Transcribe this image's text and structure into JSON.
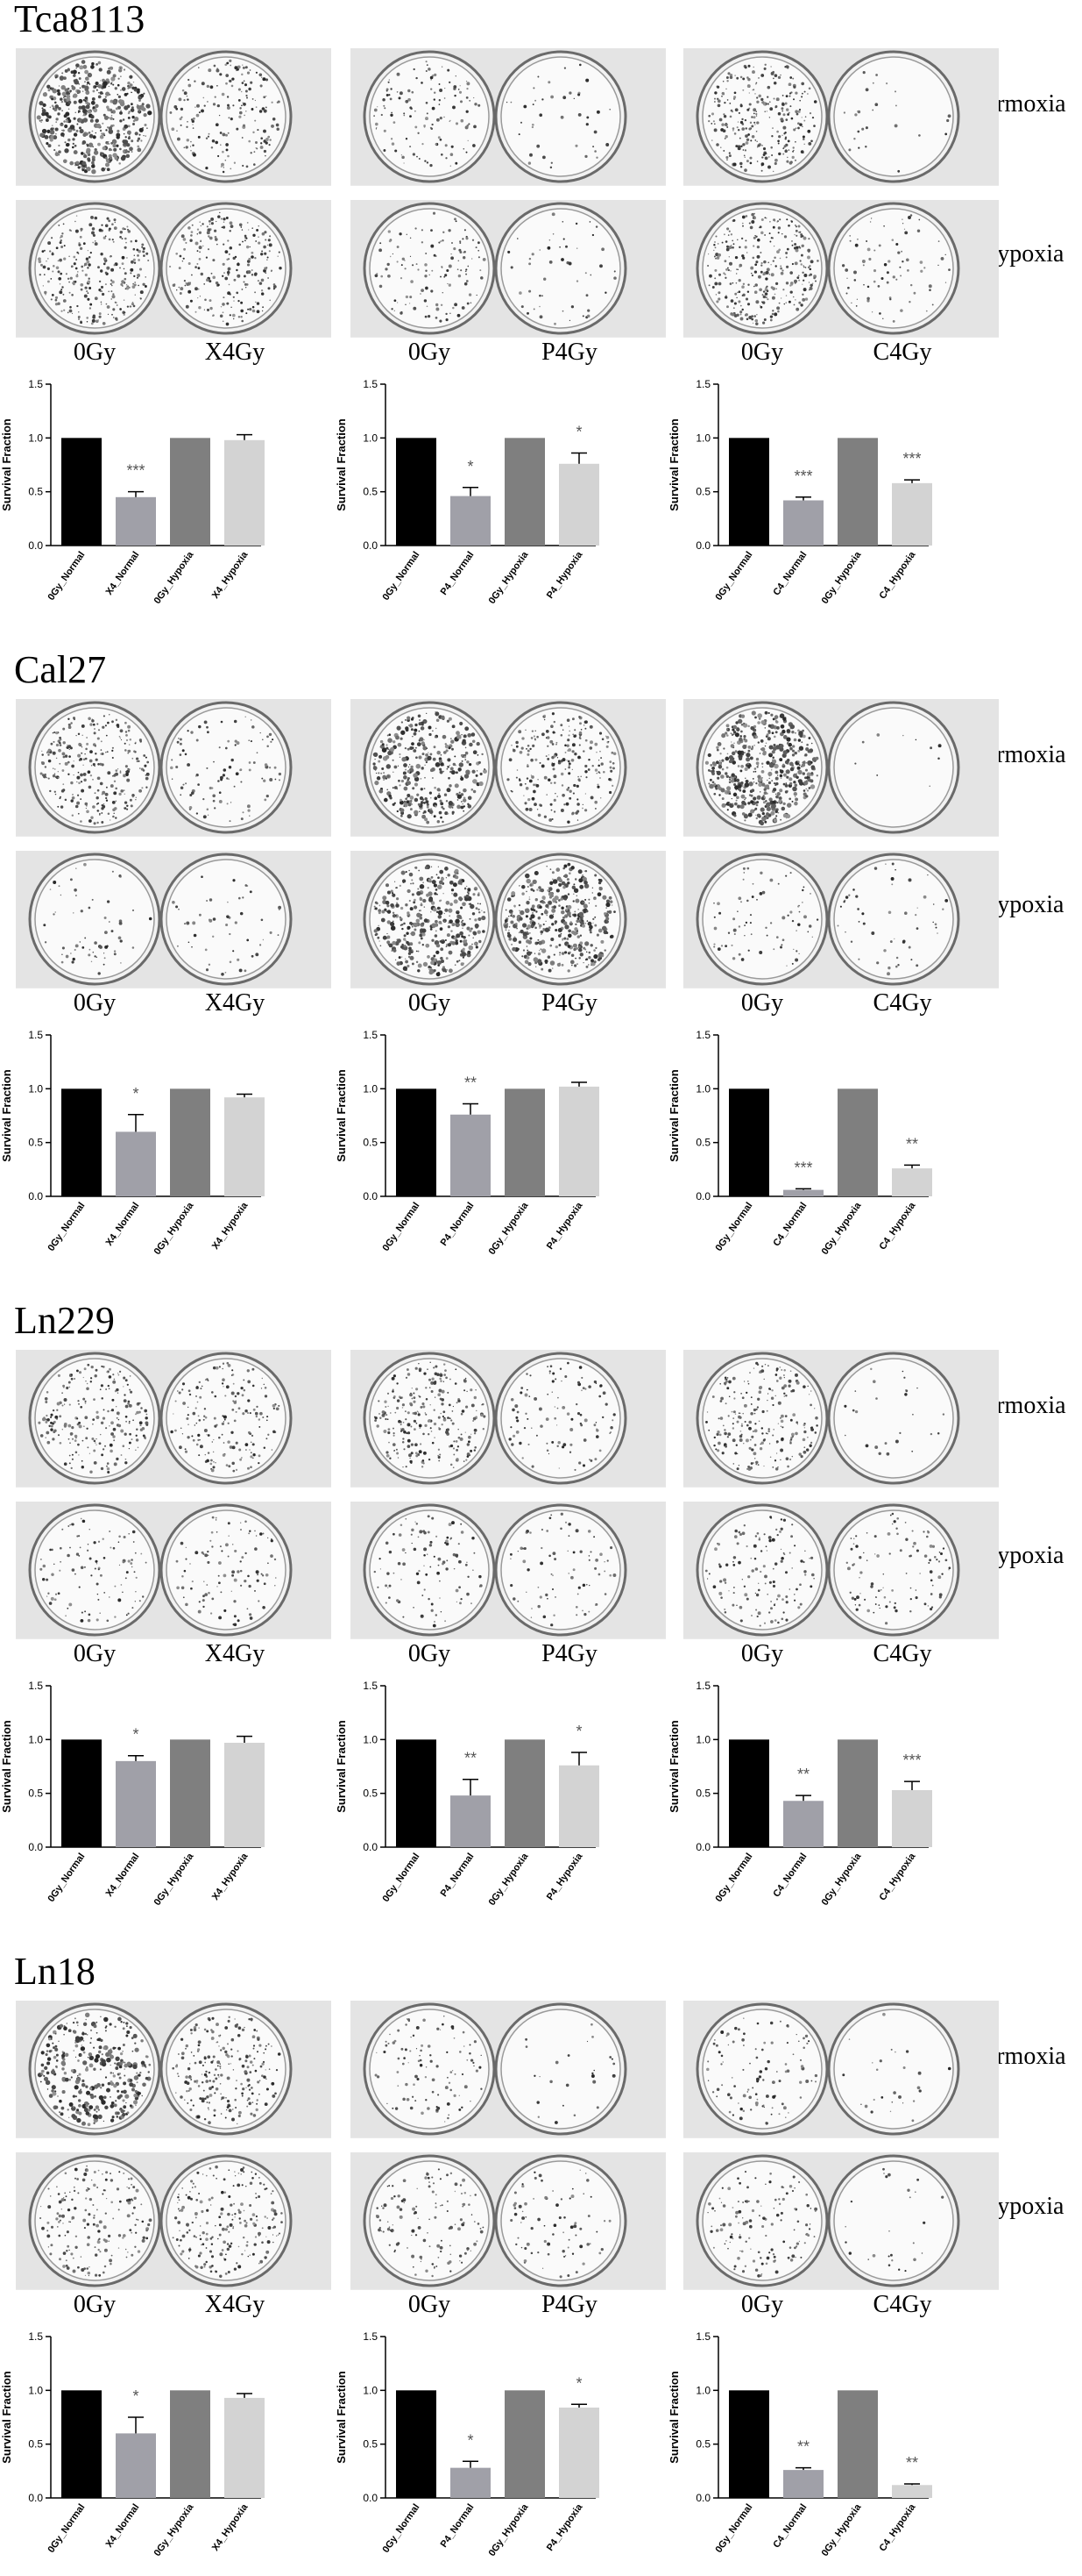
{
  "figure": {
    "row_labels": [
      "Normoxia",
      "Hypoxia"
    ],
    "axis": {
      "ylabel": "Survival Fraction",
      "ticks": [
        "0.0",
        "0.5",
        "1.0",
        "1.5"
      ]
    },
    "colors": {
      "black": "#000000",
      "dark_gray": "#a0a0a8",
      "mid_gray": "#7f7f7f",
      "light_gray": "#d3d3d3",
      "plate_bg": "#e4e4e4",
      "dish": "#fafafa"
    }
  },
  "panels": [
    {
      "title": "Tca8113",
      "groups": [
        {
          "labels": [
            "0Gy",
            "X4Gy"
          ],
          "colony_density": [
            [
              0.95,
              0.35
            ],
            [
              0.55,
              0.45
            ]
          ]
        },
        {
          "labels": [
            "0Gy",
            "P4Gy"
          ],
          "colony_density": [
            [
              0.25,
              0.08
            ],
            [
              0.25,
              0.1
            ]
          ]
        },
        {
          "labels": [
            "0Gy",
            "C4Gy"
          ],
          "colony_density": [
            [
              0.55,
              0.05
            ],
            [
              0.6,
              0.15
            ]
          ]
        }
      ]
    },
    {
      "title": "Cal27",
      "groups": [
        {
          "labels": [
            "0Gy",
            "X4Gy"
          ],
          "colony_density": [
            [
              0.55,
              0.2
            ],
            [
              0.12,
              0.1
            ]
          ]
        },
        {
          "labels": [
            "0Gy",
            "P4Gy"
          ],
          "colony_density": [
            [
              0.7,
              0.45
            ],
            [
              0.8,
              0.8
            ]
          ]
        },
        {
          "labels": [
            "0Gy",
            "C4Gy"
          ],
          "colony_density": [
            [
              1.0,
              0.02
            ],
            [
              0.15,
              0.1
            ]
          ]
        }
      ]
    },
    {
      "title": "Ln229",
      "groups": [
        {
          "labels": [
            "0Gy",
            "X4Gy"
          ],
          "colony_density": [
            [
              0.45,
              0.35
            ],
            [
              0.2,
              0.2
            ]
          ]
        },
        {
          "labels": [
            "0Gy",
            "P4Gy"
          ],
          "colony_density": [
            [
              0.5,
              0.2
            ],
            [
              0.2,
              0.15
            ]
          ]
        },
        {
          "labels": [
            "0Gy",
            "C4Gy"
          ],
          "colony_density": [
            [
              0.45,
              0.05
            ],
            [
              0.25,
              0.2
            ]
          ]
        }
      ]
    },
    {
      "title": "Ln18",
      "groups": [
        {
          "labels": [
            "0Gy",
            "X4Gy"
          ],
          "colony_density": [
            [
              0.65,
              0.45
            ],
            [
              0.35,
              0.4
            ]
          ]
        },
        {
          "labels": [
            "0Gy",
            "P4Gy"
          ],
          "colony_density": [
            [
              0.2,
              0.05
            ],
            [
              0.25,
              0.15
            ]
          ]
        },
        {
          "labels": [
            "0Gy",
            "C4Gy"
          ],
          "colony_density": [
            [
              0.2,
              0.05
            ],
            [
              0.25,
              0.05
            ]
          ]
        }
      ]
    }
  ],
  "chart_data": [
    {
      "panel": "Tca8113",
      "type": "bar",
      "ylabel": "Survival Fraction",
      "ylim": [
        0,
        1.5
      ],
      "categories": [
        "0Gy_Normal",
        "X4_Normal",
        "0Gy_Hypoxia",
        "X4_Hypoxia"
      ],
      "values": [
        1.0,
        0.45,
        1.0,
        0.98
      ],
      "errors": [
        0,
        0.05,
        0,
        0.05
      ],
      "significance": [
        "",
        "***",
        "",
        ""
      ]
    },
    {
      "panel": "Tca8113",
      "type": "bar",
      "ylabel": "Survival Fraction",
      "ylim": [
        0,
        1.5
      ],
      "categories": [
        "0Gy_Normal",
        "P4_Normal",
        "0Gy_Hypoxia",
        "P4_Hypoxia"
      ],
      "values": [
        1.0,
        0.46,
        1.0,
        0.76
      ],
      "errors": [
        0,
        0.08,
        0,
        0.1
      ],
      "significance": [
        "",
        "*",
        "",
        "*"
      ]
    },
    {
      "panel": "Tca8113",
      "type": "bar",
      "ylabel": "Survival Fraction",
      "ylim": [
        0,
        1.5
      ],
      "categories": [
        "0Gy_Normal",
        "C4_Normal",
        "0Gy_Hypoxia",
        "C4_Hypoxia"
      ],
      "values": [
        1.0,
        0.42,
        1.0,
        0.58
      ],
      "errors": [
        0,
        0.03,
        0,
        0.03
      ],
      "significance": [
        "",
        "***",
        "",
        "***"
      ]
    },
    {
      "panel": "Cal27",
      "type": "bar",
      "ylabel": "Survival Fraction",
      "ylim": [
        0,
        1.5
      ],
      "categories": [
        "0Gy_Normal",
        "X4_Normal",
        "0Gy_Hypoxia",
        "X4_Hypoxia"
      ],
      "values": [
        1.0,
        0.6,
        1.0,
        0.92
      ],
      "errors": [
        0,
        0.16,
        0,
        0.03
      ],
      "significance": [
        "",
        "*",
        "",
        ""
      ]
    },
    {
      "panel": "Cal27",
      "type": "bar",
      "ylabel": "Survival Fraction",
      "ylim": [
        0,
        1.5
      ],
      "categories": [
        "0Gy_Normal",
        "P4_Normal",
        "0Gy_Hypoxia",
        "P4_Hypoxia"
      ],
      "values": [
        1.0,
        0.76,
        1.0,
        1.02
      ],
      "errors": [
        0,
        0.1,
        0,
        0.04
      ],
      "significance": [
        "",
        "**",
        "",
        ""
      ]
    },
    {
      "panel": "Cal27",
      "type": "bar",
      "ylabel": "Survival Fraction",
      "ylim": [
        0,
        1.5
      ],
      "categories": [
        "0Gy_Normal",
        "C4_Normal",
        "0Gy_Hypoxia",
        "C4_Hypoxia"
      ],
      "values": [
        1.0,
        0.06,
        1.0,
        0.26
      ],
      "errors": [
        0,
        0.01,
        0,
        0.03
      ],
      "significance": [
        "",
        "***",
        "",
        "**"
      ]
    },
    {
      "panel": "Ln229",
      "type": "bar",
      "ylabel": "Survival Fraction",
      "ylim": [
        0,
        1.5
      ],
      "categories": [
        "0Gy_Normal",
        "X4_Normal",
        "0Gy_Hypoxia",
        "X4_Hypoxia"
      ],
      "values": [
        1.0,
        0.8,
        1.0,
        0.97
      ],
      "errors": [
        0,
        0.05,
        0,
        0.06
      ],
      "significance": [
        "",
        "*",
        "",
        ""
      ]
    },
    {
      "panel": "Ln229",
      "type": "bar",
      "ylabel": "Survival Fraction",
      "ylim": [
        0,
        1.5
      ],
      "categories": [
        "0Gy_Normal",
        "P4_Normal",
        "0Gy_Hypoxia",
        "P4_Hypoxia"
      ],
      "values": [
        1.0,
        0.48,
        1.0,
        0.76
      ],
      "errors": [
        0,
        0.15,
        0,
        0.12
      ],
      "significance": [
        "",
        "**",
        "",
        "*"
      ]
    },
    {
      "panel": "Ln229",
      "type": "bar",
      "ylabel": "Survival Fraction",
      "ylim": [
        0,
        1.5
      ],
      "categories": [
        "0Gy_Normal",
        "C4_Normal",
        "0Gy_Hypoxia",
        "C4_Hypoxia"
      ],
      "values": [
        1.0,
        0.43,
        1.0,
        0.53
      ],
      "errors": [
        0,
        0.05,
        0,
        0.08
      ],
      "significance": [
        "",
        "**",
        "",
        "***"
      ]
    },
    {
      "panel": "Ln18",
      "type": "bar",
      "ylabel": "Survival Fraction",
      "ylim": [
        0,
        1.5
      ],
      "categories": [
        "0Gy_Normal",
        "X4_Normal",
        "0Gy_Hypoxia",
        "X4_Hypoxia"
      ],
      "values": [
        1.0,
        0.6,
        1.0,
        0.93
      ],
      "errors": [
        0,
        0.15,
        0,
        0.04
      ],
      "significance": [
        "",
        "*",
        "",
        ""
      ]
    },
    {
      "panel": "Ln18",
      "type": "bar",
      "ylabel": "Survival Fraction",
      "ylim": [
        0,
        1.5
      ],
      "categories": [
        "0Gy_Normal",
        "P4_Normal",
        "0Gy_Hypoxia",
        "P4_Hypoxia"
      ],
      "values": [
        1.0,
        0.28,
        1.0,
        0.84
      ],
      "errors": [
        0,
        0.06,
        0,
        0.03
      ],
      "significance": [
        "",
        "*",
        "",
        "*"
      ]
    },
    {
      "panel": "Ln18",
      "type": "bar",
      "ylabel": "Survival Fraction",
      "ylim": [
        0,
        1.5
      ],
      "categories": [
        "0Gy_Normal",
        "C4_Normal",
        "0Gy_Hypoxia",
        "C4_Hypoxia"
      ],
      "values": [
        1.0,
        0.26,
        1.0,
        0.12
      ],
      "errors": [
        0,
        0.02,
        0,
        0.01
      ],
      "significance": [
        "",
        "**",
        "",
        "**"
      ]
    }
  ]
}
